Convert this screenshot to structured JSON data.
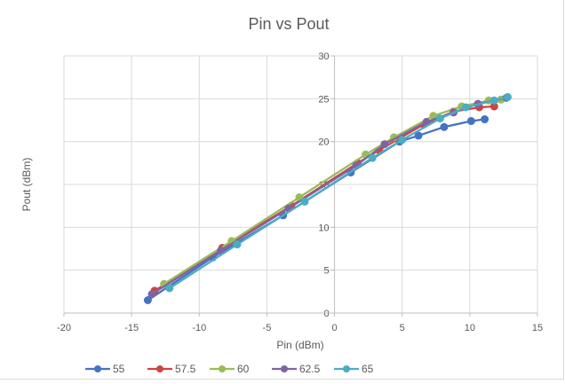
{
  "chart_data": {
    "type": "line",
    "title": "Pin vs Pout",
    "xlabel": "Pin (dBm)",
    "ylabel": "Pout (dBm)",
    "xlim": [
      -20,
      15
    ],
    "ylim": [
      0,
      30
    ],
    "xticks": [
      -20,
      -15,
      -10,
      -5,
      0,
      5,
      10,
      15
    ],
    "yticks": [
      0,
      5,
      10,
      15,
      20,
      25,
      30
    ],
    "grid": true,
    "legend_position": "bottom",
    "series": [
      {
        "name": "55",
        "color": "#4472C4",
        "points": [
          [
            -13.8,
            1.5
          ],
          [
            -9.0,
            6.5
          ],
          [
            -3.8,
            11.4
          ],
          [
            1.2,
            16.4
          ],
          [
            4.8,
            20.0
          ],
          [
            6.2,
            20.7
          ],
          [
            8.1,
            21.7
          ],
          [
            10.1,
            22.4
          ],
          [
            11.1,
            22.6
          ]
        ]
      },
      {
        "name": "57.5",
        "color": "#D0433F",
        "points": [
          [
            -13.3,
            2.6
          ],
          [
            -8.3,
            7.6
          ],
          [
            -3.2,
            12.5
          ],
          [
            1.7,
            17.5
          ],
          [
            3.3,
            19.0
          ],
          [
            6.6,
            22.0
          ],
          [
            8.8,
            23.5
          ],
          [
            10.7,
            24.0
          ],
          [
            11.8,
            24.1
          ]
        ]
      },
      {
        "name": "60",
        "color": "#9BBB59",
        "points": [
          [
            -12.6,
            3.4
          ],
          [
            -7.6,
            8.4
          ],
          [
            -2.6,
            13.5
          ],
          [
            2.3,
            18.5
          ],
          [
            4.4,
            20.5
          ],
          [
            7.3,
            23.0
          ],
          [
            9.4,
            24.1
          ],
          [
            11.4,
            24.8
          ],
          [
            12.3,
            24.9
          ]
        ]
      },
      {
        "name": "62.5",
        "color": "#8064A2",
        "points": [
          [
            -13.5,
            2.2
          ],
          [
            -8.4,
            7.3
          ],
          [
            -3.4,
            12.2
          ],
          [
            1.6,
            17.2
          ],
          [
            3.7,
            19.7
          ],
          [
            6.8,
            22.3
          ],
          [
            8.8,
            23.4
          ],
          [
            10.6,
            24.4
          ],
          [
            12.7,
            25.1
          ]
        ]
      },
      {
        "name": "65",
        "color": "#4BACC6",
        "points": [
          [
            -12.2,
            2.9
          ],
          [
            -7.2,
            8.0
          ],
          [
            -2.2,
            13.0
          ],
          [
            2.8,
            18.1
          ],
          [
            5.0,
            20.2
          ],
          [
            7.8,
            22.7
          ],
          [
            9.7,
            24.0
          ],
          [
            11.8,
            24.8
          ],
          [
            12.8,
            25.2
          ]
        ]
      }
    ]
  }
}
